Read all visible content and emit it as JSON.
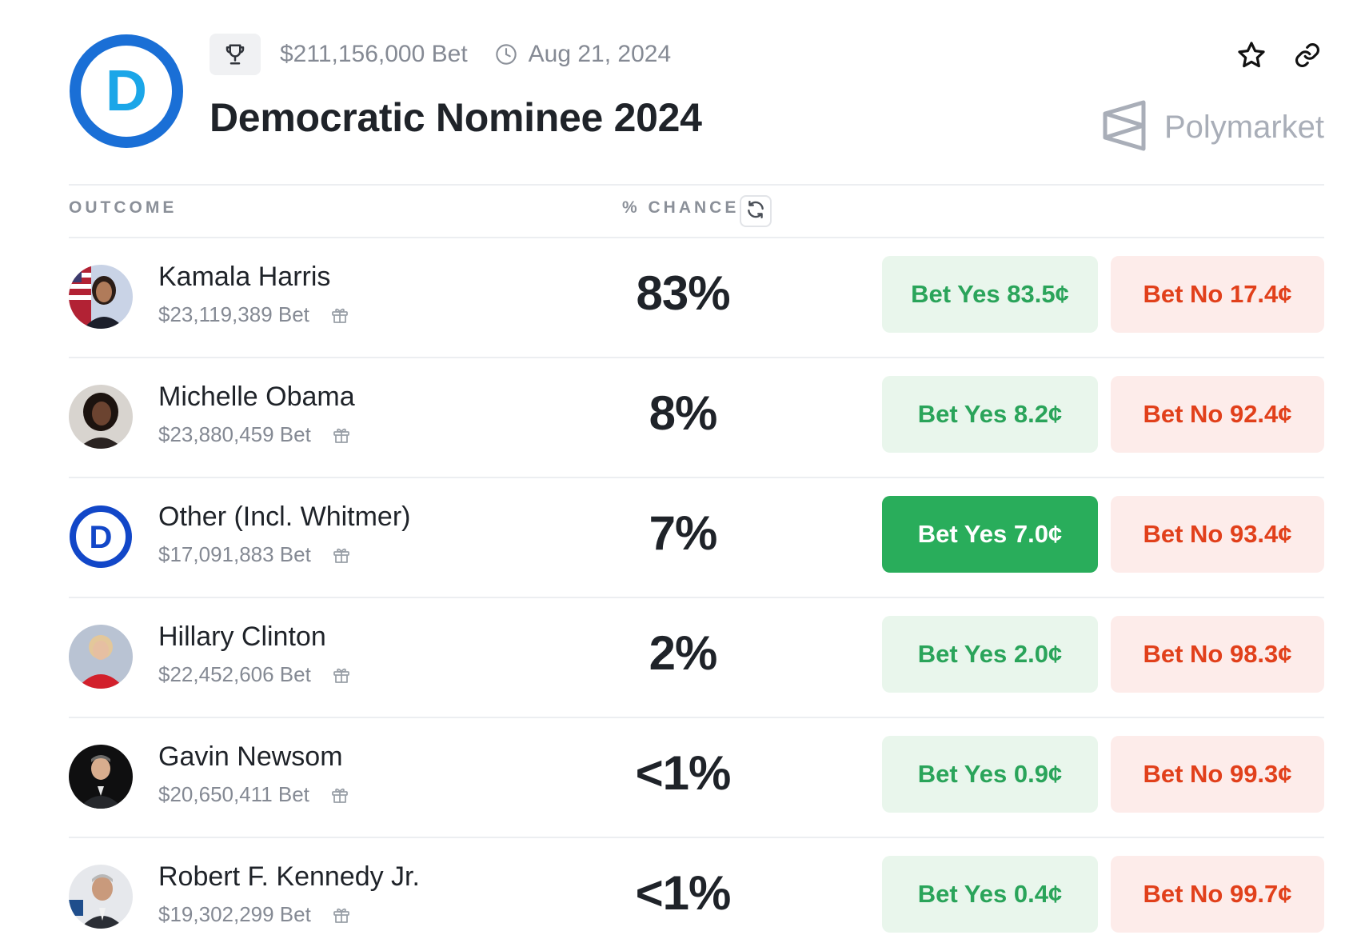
{
  "event": {
    "volume": "$211,156,000 Bet",
    "date": "Aug 21, 2024",
    "title": "Democratic Nominee 2024",
    "logo_letter": "D",
    "brand": "Polymarket"
  },
  "table": {
    "outcome_header": "OUTCOME",
    "chance_header": "% CHANCE"
  },
  "colors": {
    "yes_text": "#2aa45a",
    "yes_bg": "#e9f6ec",
    "yes_active_bg": "#29ad5b",
    "no_text": "#e1401b",
    "no_bg": "#fdecea",
    "dem_blue": "#1166d8"
  },
  "outcomes": [
    {
      "name": "Kamala Harris",
      "volume": "$23,119,389 Bet",
      "chance": "83%",
      "yes": "Bet Yes 83.5¢",
      "no": "Bet No 17.4¢"
    },
    {
      "name": "Michelle Obama",
      "volume": "$23,880,459 Bet",
      "chance": "8%",
      "yes": "Bet Yes 8.2¢",
      "no": "Bet No 92.4¢"
    },
    {
      "name": "Other (Incl. Whitmer)",
      "volume": "$17,091,883 Bet",
      "chance": "7%",
      "yes": "Bet Yes 7.0¢",
      "no": "Bet No 93.4¢",
      "avatar_letter": "D"
    },
    {
      "name": "Hillary Clinton",
      "volume": "$22,452,606 Bet",
      "chance": "2%",
      "yes": "Bet Yes 2.0¢",
      "no": "Bet No 98.3¢"
    },
    {
      "name": "Gavin Newsom",
      "volume": "$20,650,411 Bet",
      "chance": "<1%",
      "yes": "Bet Yes 0.9¢",
      "no": "Bet No 99.3¢"
    },
    {
      "name": "Robert F. Kennedy Jr.",
      "volume": "$19,302,299 Bet",
      "chance": "<1%",
      "yes": "Bet Yes 0.4¢",
      "no": "Bet No 99.7¢"
    }
  ]
}
